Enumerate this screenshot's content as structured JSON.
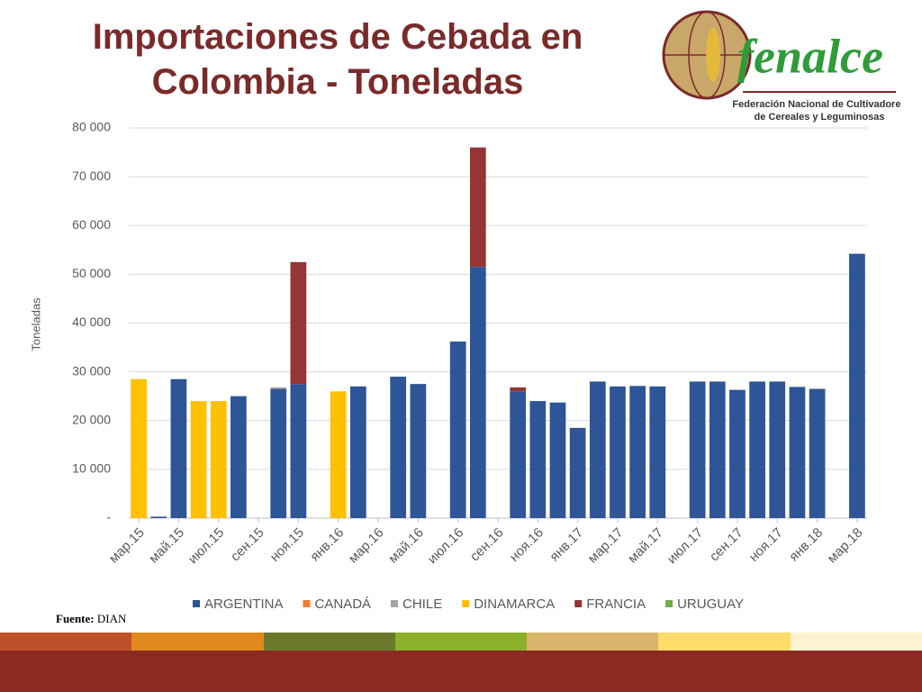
{
  "chart_data": {
    "type": "stacked_bar",
    "title": "Importaciones de Cebada en Colombia - Toneladas",
    "y_label": "Toneladas",
    "source_label": "Fuente:",
    "source": "DIAN",
    "logo_name": "fenalce",
    "logo_line1": "Federación Nacional de Cultivadores",
    "logo_line2": "de Cereales y Leguminosas",
    "categories": [
      "мар.15",
      null,
      "май.15",
      null,
      "июл.15",
      null,
      "сен.15",
      null,
      "ноя.15",
      null,
      "янв.16",
      null,
      "мар.16",
      null,
      "май.16",
      null,
      "июл.16",
      null,
      "сен.16",
      null,
      "ноя.16",
      null,
      "янв.17",
      null,
      "мар.17",
      null,
      "май.17",
      null,
      "июл.17",
      null,
      "сен.17",
      null,
      "ноя.17",
      null,
      "янв.18",
      null,
      "мар.18"
    ],
    "series": [
      {
        "name": "ARGENTINA",
        "color": "#2e5596",
        "values": [
          0,
          300,
          28500,
          0,
          0,
          25000,
          0,
          26500,
          27500,
          0,
          0,
          27000,
          0,
          29000,
          27500,
          0,
          36200,
          51500,
          0,
          26000,
          24000,
          23700,
          18500,
          28000,
          27000,
          27100,
          27000,
          0,
          28000,
          28000,
          26300,
          28000,
          28000,
          26900,
          26500,
          0,
          54200
        ]
      },
      {
        "name": "CANADÁ",
        "color": "#ed7d31",
        "values": [
          0,
          0,
          0,
          0,
          0,
          0,
          0,
          0,
          0,
          0,
          0,
          0,
          0,
          0,
          0,
          0,
          0,
          0,
          0,
          0,
          0,
          0,
          0,
          0,
          0,
          0,
          0,
          0,
          0,
          0,
          0,
          0,
          0,
          0,
          0,
          0,
          0
        ]
      },
      {
        "name": "CHILE",
        "color": "#a5a5a5",
        "values": [
          0,
          0,
          0,
          0,
          0,
          0,
          0,
          300,
          0,
          0,
          0,
          0,
          0,
          0,
          0,
          0,
          0,
          0,
          0,
          0,
          0,
          0,
          0,
          0,
          0,
          0,
          0,
          0,
          0,
          0,
          0,
          0,
          0,
          0,
          0,
          0,
          0
        ]
      },
      {
        "name": "DINAMARCA",
        "color": "#ffc000",
        "values": [
          28500,
          0,
          0,
          24000,
          24000,
          0,
          0,
          0,
          0,
          0,
          26000,
          0,
          0,
          0,
          0,
          0,
          0,
          0,
          0,
          0,
          0,
          0,
          0,
          0,
          0,
          0,
          0,
          0,
          0,
          0,
          0,
          0,
          0,
          0,
          0,
          0,
          0
        ]
      },
      {
        "name": "FRANCIA",
        "color": "#943634",
        "values": [
          0,
          0,
          0,
          0,
          0,
          0,
          0,
          0,
          25000,
          0,
          0,
          0,
          0,
          0,
          0,
          0,
          0,
          24500,
          0,
          800,
          0,
          0,
          0,
          0,
          0,
          0,
          0,
          0,
          0,
          0,
          0,
          0,
          0,
          0,
          0,
          0,
          0
        ]
      },
      {
        "name": "URUGUAY",
        "color": "#70ad47",
        "values": [
          0,
          0,
          0,
          0,
          0,
          0,
          0,
          0,
          0,
          0,
          0,
          0,
          0,
          0,
          0,
          0,
          0,
          0,
          0,
          0,
          0,
          0,
          0,
          0,
          0,
          0,
          0,
          0,
          0,
          0,
          0,
          0,
          0,
          0,
          0,
          0,
          0
        ]
      }
    ],
    "ylim": [
      0,
      80000
    ],
    "yticks": [
      {
        "value": 0,
        "label": "-"
      },
      {
        "value": 10000,
        "label": "10 000"
      },
      {
        "value": 20000,
        "label": "20 000"
      },
      {
        "value": 30000,
        "label": "30 000"
      },
      {
        "value": 40000,
        "label": "40 000"
      },
      {
        "value": 50000,
        "label": "50 000"
      },
      {
        "value": 60000,
        "label": "60 000"
      },
      {
        "value": 70000,
        "label": "70 000"
      },
      {
        "value": 80000,
        "label": "80 000"
      }
    ],
    "grid": true,
    "legend": "bottom"
  }
}
